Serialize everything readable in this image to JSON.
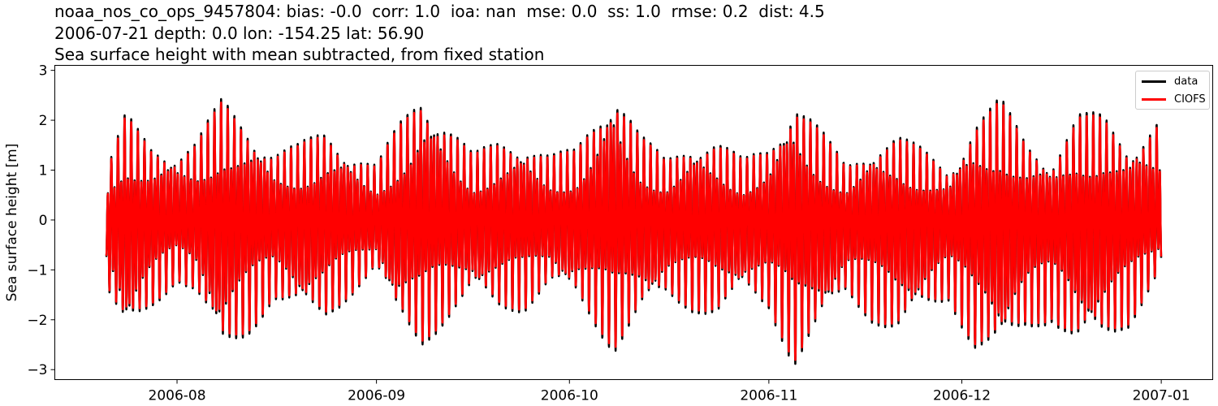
{
  "title": {
    "line1": "noaa_nos_co_ops_9457804: bias: -0.0  corr: 1.0  ioa: nan  mse: 0.0  ss: 1.0  rmse: 0.2  dist: 4.5",
    "line2": "2006-07-21 depth: 0.0 lon: -154.25 lat: 56.90",
    "line3": "Sea surface height with mean subtracted, from fixed station"
  },
  "chart_data": {
    "type": "line",
    "xlabel": "",
    "ylabel": "Sea surface height [m]",
    "xlim": [
      "2006-07-13",
      "2007-01-09"
    ],
    "ylim": [
      -3.2,
      3.1
    ],
    "x_ticks": [
      "2006-08",
      "2006-09",
      "2006-10",
      "2006-11",
      "2006-12",
      "2007-01"
    ],
    "y_ticks": [
      -3,
      -2,
      -1,
      0,
      1,
      2,
      3
    ],
    "grid": false,
    "legend_placement": "top-right",
    "x_start": "2006-07-21",
    "x_end": "2007-01-01",
    "series": [
      {
        "name": "data",
        "color": "#000000"
      },
      {
        "name": "CIOFS",
        "color": "#ff0000"
      }
    ],
    "tidal_envelope": [
      {
        "date": "2006-07-21",
        "high": 1.0,
        "low": -1.4
      },
      {
        "date": "2006-07-24",
        "high": 2.1,
        "low": -2.5
      },
      {
        "date": "2006-07-28",
        "high": 1.5,
        "low": -1.8
      },
      {
        "date": "2006-08-01",
        "high": 1.4,
        "low": -1.2
      },
      {
        "date": "2006-08-04",
        "high": 1.6,
        "low": -1.5
      },
      {
        "date": "2006-08-08",
        "high": 2.4,
        "low": -2.8
      },
      {
        "date": "2006-08-12",
        "high": 1.9,
        "low": -2.3
      },
      {
        "date": "2006-08-16",
        "high": 1.4,
        "low": -1.6
      },
      {
        "date": "2006-08-20",
        "high": 1.5,
        "low": -1.9
      },
      {
        "date": "2006-08-24",
        "high": 1.8,
        "low": -2.0
      },
      {
        "date": "2006-08-28",
        "high": 1.4,
        "low": -1.5
      },
      {
        "date": "2006-09-01",
        "high": 1.1,
        "low": -1.0
      },
      {
        "date": "2006-09-04",
        "high": 1.8,
        "low": -2.0
      },
      {
        "date": "2006-09-08",
        "high": 2.6,
        "low": -2.5
      },
      {
        "date": "2006-09-12",
        "high": 2.0,
        "low": -2.0
      },
      {
        "date": "2006-09-16",
        "high": 1.3,
        "low": -1.5
      },
      {
        "date": "2006-09-20",
        "high": 1.6,
        "low": -1.8
      },
      {
        "date": "2006-09-24",
        "high": 1.6,
        "low": -1.8
      },
      {
        "date": "2006-09-28",
        "high": 1.3,
        "low": -1.3
      },
      {
        "date": "2006-10-02",
        "high": 1.4,
        "low": -1.6
      },
      {
        "date": "2006-10-06",
        "high": 2.3,
        "low": -2.3
      },
      {
        "date": "2006-10-08",
        "high": 2.8,
        "low": -2.6
      },
      {
        "date": "2006-10-12",
        "high": 1.7,
        "low": -1.9
      },
      {
        "date": "2006-10-16",
        "high": 1.2,
        "low": -1.6
      },
      {
        "date": "2006-10-20",
        "high": 1.6,
        "low": -1.8
      },
      {
        "date": "2006-10-24",
        "high": 1.6,
        "low": -1.9
      },
      {
        "date": "2006-10-28",
        "high": 1.2,
        "low": -1.5
      },
      {
        "date": "2006-11-01",
        "high": 1.5,
        "low": -1.8
      },
      {
        "date": "2006-11-05",
        "high": 2.5,
        "low": -2.9
      },
      {
        "date": "2006-11-09",
        "high": 1.8,
        "low": -2.2
      },
      {
        "date": "2006-11-13",
        "high": 1.1,
        "low": -1.5
      },
      {
        "date": "2006-11-17",
        "high": 1.5,
        "low": -2.0
      },
      {
        "date": "2006-11-21",
        "high": 1.7,
        "low": -2.3
      },
      {
        "date": "2006-11-25",
        "high": 1.4,
        "low": -1.9
      },
      {
        "date": "2006-11-29",
        "high": 1.0,
        "low": -1.6
      },
      {
        "date": "2006-12-03",
        "high": 2.0,
        "low": -2.6
      },
      {
        "date": "2006-12-07",
        "high": 2.4,
        "low": -2.8
      },
      {
        "date": "2006-12-11",
        "high": 1.6,
        "low": -2.2
      },
      {
        "date": "2006-12-15",
        "high": 1.2,
        "low": -2.0
      },
      {
        "date": "2006-12-19",
        "high": 2.1,
        "low": -2.6
      },
      {
        "date": "2006-12-23",
        "high": 2.1,
        "low": -2.5
      },
      {
        "date": "2006-12-27",
        "high": 1.5,
        "low": -2.1
      },
      {
        "date": "2007-01-01",
        "high": 2.1,
        "low": -1.0
      }
    ]
  }
}
